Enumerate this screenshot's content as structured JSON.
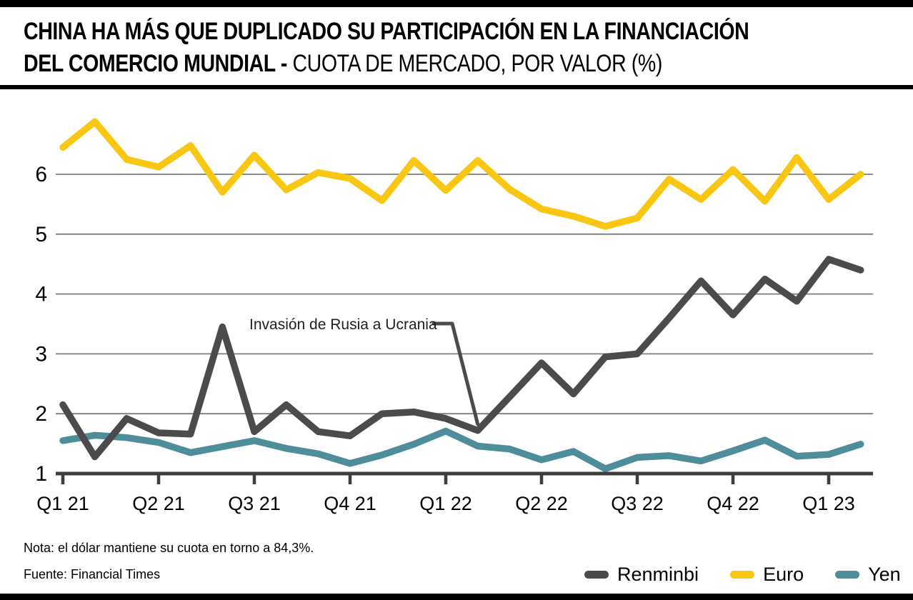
{
  "header": {
    "title_line1": "CHINA HA MÁS QUE DUPLICADO SU PARTICIPACIÓN EN LA FINANCIACIÓN",
    "title_line2_bold": "DEL COMERCIO MUNDIAL - ",
    "title_line2_regular": "CUOTA DE MERCADO, POR VALOR (%)"
  },
  "chart_data": {
    "type": "line",
    "title": "CHINA HA MÁS QUE DUPLICADO SU PARTICIPACIÓN EN LA FINANCIACIÓN DEL COMERCIO MUNDIAL - CUOTA DE MERCADO, POR VALOR (%)",
    "x_tick_labels": [
      "Q1 21",
      "Q2 21",
      "Q3 21",
      "Q4 21",
      "Q1 22",
      "Q2 22",
      "Q3 22",
      "Q4 22",
      "Q1 23"
    ],
    "points_per_quarter": 3,
    "y_ticks": [
      1,
      2,
      3,
      4,
      5,
      6
    ],
    "ylim": [
      1,
      7.1
    ],
    "grid": "horizontal",
    "legend_position": "bottom-right",
    "series": [
      {
        "name": "Renminbi",
        "color": "#4b4b4b",
        "values": [
          2.15,
          1.28,
          1.92,
          1.68,
          1.66,
          3.45,
          1.7,
          2.15,
          1.7,
          1.63,
          2.0,
          2.03,
          1.92,
          1.72,
          2.28,
          2.85,
          2.33,
          2.95,
          3.0,
          3.6,
          4.22,
          3.65,
          4.25,
          3.88,
          4.58,
          4.4
        ]
      },
      {
        "name": "Euro",
        "color": "#f9c612",
        "values": [
          6.45,
          6.88,
          6.25,
          6.12,
          6.48,
          5.7,
          6.32,
          5.74,
          6.03,
          5.93,
          5.56,
          6.23,
          5.73,
          6.23,
          5.75,
          5.42,
          5.3,
          5.13,
          5.27,
          5.92,
          5.58,
          6.08,
          5.55,
          6.28,
          5.58,
          6.0
        ]
      },
      {
        "name": "Yen",
        "color": "#4e8d9a",
        "values": [
          1.55,
          1.64,
          1.6,
          1.52,
          1.35,
          1.45,
          1.55,
          1.42,
          1.33,
          1.17,
          1.31,
          1.49,
          1.71,
          1.46,
          1.41,
          1.23,
          1.37,
          1.08,
          1.27,
          1.3,
          1.21,
          1.38,
          1.56,
          1.29,
          1.32,
          1.49
        ]
      }
    ],
    "annotation": {
      "text": "Invasión de Rusia a Ucrania",
      "points_to_series": "Renminbi",
      "points_to_index": 13
    }
  },
  "footer": {
    "note": "Nota: el dólar mantiene su cuota en torno a 84,3%.",
    "source": "Fuente: Financial Times"
  },
  "colors": {
    "axis": "#3d3d3d",
    "gridline": "#7d7d7d",
    "bars": "#000000",
    "annotation_text": "#1f1f1f"
  }
}
